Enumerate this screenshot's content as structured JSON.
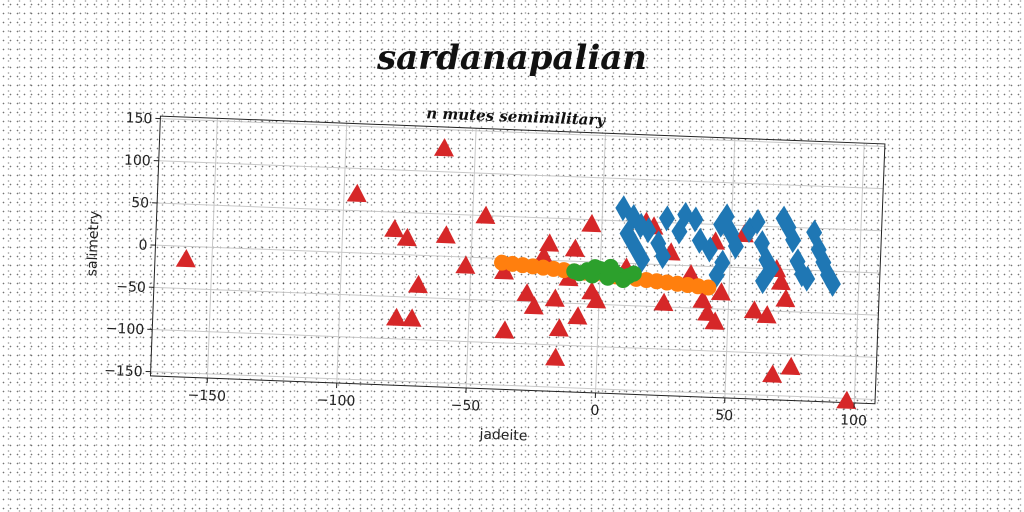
{
  "page": {
    "title": "sardanapalian"
  },
  "colors": {
    "red": "#d62728",
    "blue": "#1f77b4",
    "orange": "#ff7f0e",
    "green": "#2ca02c",
    "grid": "#c8c8c8"
  },
  "chart_data": {
    "type": "scatter",
    "title": "n mutes semimilitary",
    "xlabel": "jadeite",
    "ylabel": "salimetry",
    "xlim": [
      -172,
      108
    ],
    "ylim": [
      -155,
      153
    ],
    "x_ticks": [
      -150,
      -100,
      -50,
      0,
      50,
      100
    ],
    "y_ticks": [
      150,
      100,
      50,
      0,
      -50,
      -100,
      -150
    ],
    "grid": true,
    "series": [
      {
        "marker": "triangle",
        "color": "#d62728",
        "points": [
          [
            -160,
            -15
          ],
          [
            -95,
            70
          ],
          [
            -62,
            128
          ],
          [
            -80,
            30
          ],
          [
            -75,
            20
          ],
          [
            -60,
            25
          ],
          [
            -70,
            -35
          ],
          [
            -78,
            -75
          ],
          [
            -72,
            -75
          ],
          [
            -52,
            -10
          ],
          [
            -45,
            50
          ],
          [
            -37,
            -15
          ],
          [
            -36,
            -85
          ],
          [
            -28,
            -40
          ],
          [
            -25,
            -55
          ],
          [
            -22,
            5
          ],
          [
            -20,
            20
          ],
          [
            -17,
            -45
          ],
          [
            -15,
            -80
          ],
          [
            -16,
            -115
          ],
          [
            -12,
            -20
          ],
          [
            -10,
            15
          ],
          [
            -8,
            -65
          ],
          [
            -4,
            45
          ],
          [
            -3,
            -35
          ],
          [
            -1,
            -45
          ],
          [
            -2,
            -10
          ],
          [
            5,
            -10
          ],
          [
            10,
            -5
          ],
          [
            17,
            50
          ],
          [
            20,
            45
          ],
          [
            25,
            -45
          ],
          [
            27,
            15
          ],
          [
            35,
            -10
          ],
          [
            40,
            -40
          ],
          [
            42,
            -55
          ],
          [
            44,
            30
          ],
          [
            45,
            -65
          ],
          [
            47,
            -30
          ],
          [
            55,
            40
          ],
          [
            60,
            -50
          ],
          [
            65,
            -55
          ],
          [
            68,
            0
          ],
          [
            70,
            -15
          ],
          [
            72,
            -35
          ],
          [
            68,
            -125
          ],
          [
            75,
            -115
          ],
          [
            97,
            -170
          ]
        ]
      },
      {
        "marker": "diamond",
        "color": "#1f77b4",
        "points": [
          [
            8,
            65
          ],
          [
            12,
            55
          ],
          [
            15,
            45
          ],
          [
            10,
            35
          ],
          [
            13,
            20
          ],
          [
            16,
            5
          ],
          [
            18,
            40
          ],
          [
            22,
            25
          ],
          [
            24,
            10
          ],
          [
            25,
            55
          ],
          [
            30,
            40
          ],
          [
            32,
            60
          ],
          [
            36,
            55
          ],
          [
            38,
            30
          ],
          [
            42,
            20
          ],
          [
            46,
            50
          ],
          [
            48,
            60
          ],
          [
            50,
            40
          ],
          [
            47,
            5
          ],
          [
            45,
            -10
          ],
          [
            52,
            25
          ],
          [
            57,
            45
          ],
          [
            60,
            55
          ],
          [
            62,
            30
          ],
          [
            64,
            10
          ],
          [
            63,
            -15
          ],
          [
            66,
            0
          ],
          [
            70,
            60
          ],
          [
            72,
            50
          ],
          [
            74,
            35
          ],
          [
            76,
            10
          ],
          [
            78,
            -5
          ],
          [
            80,
            -10
          ],
          [
            82,
            45
          ],
          [
            84,
            25
          ],
          [
            86,
            10
          ],
          [
            88,
            -5
          ],
          [
            90,
            -15
          ]
        ]
      },
      {
        "marker": "circle",
        "color": "#ff7f0e",
        "points": [
          [
            -38,
            -5
          ],
          [
            -34,
            -6
          ],
          [
            -30,
            -7
          ],
          [
            -26,
            -8
          ],
          [
            -22,
            -9
          ],
          [
            -18,
            -10
          ],
          [
            -14,
            -11
          ],
          [
            -10,
            -12
          ],
          [
            -6,
            -13
          ],
          [
            -2,
            -14
          ],
          [
            2,
            -15
          ],
          [
            6,
            -16
          ],
          [
            10,
            -17
          ],
          [
            14,
            -18
          ],
          [
            18,
            -19
          ],
          [
            22,
            -20
          ],
          [
            26,
            -21
          ],
          [
            30,
            -22
          ],
          [
            34,
            -23
          ],
          [
            38,
            -24
          ],
          [
            42,
            -25
          ]
        ]
      },
      {
        "marker": "circle",
        "color": "#2ca02c",
        "points": [
          [
            -10,
            -12
          ],
          [
            -8,
            -14
          ],
          [
            -5,
            -10
          ],
          [
            -3,
            -16
          ],
          [
            0,
            -8
          ],
          [
            1,
            -12
          ],
          [
            3,
            -18
          ],
          [
            5,
            -10
          ],
          [
            7,
            -14
          ],
          [
            9,
            -20
          ],
          [
            11,
            -15
          ],
          [
            13,
            -12
          ],
          [
            4,
            -5
          ],
          [
            -2,
            -6
          ]
        ]
      }
    ]
  }
}
